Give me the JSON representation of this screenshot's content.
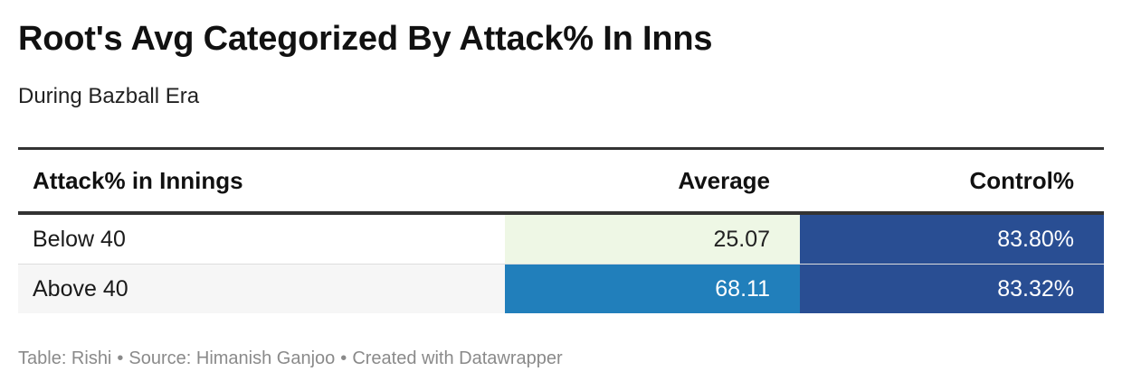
{
  "title": "Root's Avg Categorized By Attack% In Inns",
  "subtitle": "During Bazball Era",
  "chart_data": {
    "type": "table",
    "columns": [
      "Attack% in Innings",
      "Average",
      "Control%"
    ],
    "rows": [
      {
        "category": "Below 40",
        "average": "25.07",
        "control": "83.80%",
        "row_bg": "#ffffff",
        "average_bg": "#eef7e5",
        "average_color": "#222222",
        "control_bg": "#294e93",
        "control_color": "#ffffff"
      },
      {
        "category": "Above 40",
        "average": "68.11",
        "control": "83.32%",
        "row_bg": "#f6f6f6",
        "average_bg": "#217fbb",
        "average_color": "#ffffff",
        "control_bg": "#294e93",
        "control_color": "#ffffff"
      }
    ]
  },
  "footer": {
    "table_credit": "Table: Rishi",
    "source": "Source: Himanish Ganjoo",
    "created_with": "Created with Datawrapper",
    "separator": "•"
  }
}
